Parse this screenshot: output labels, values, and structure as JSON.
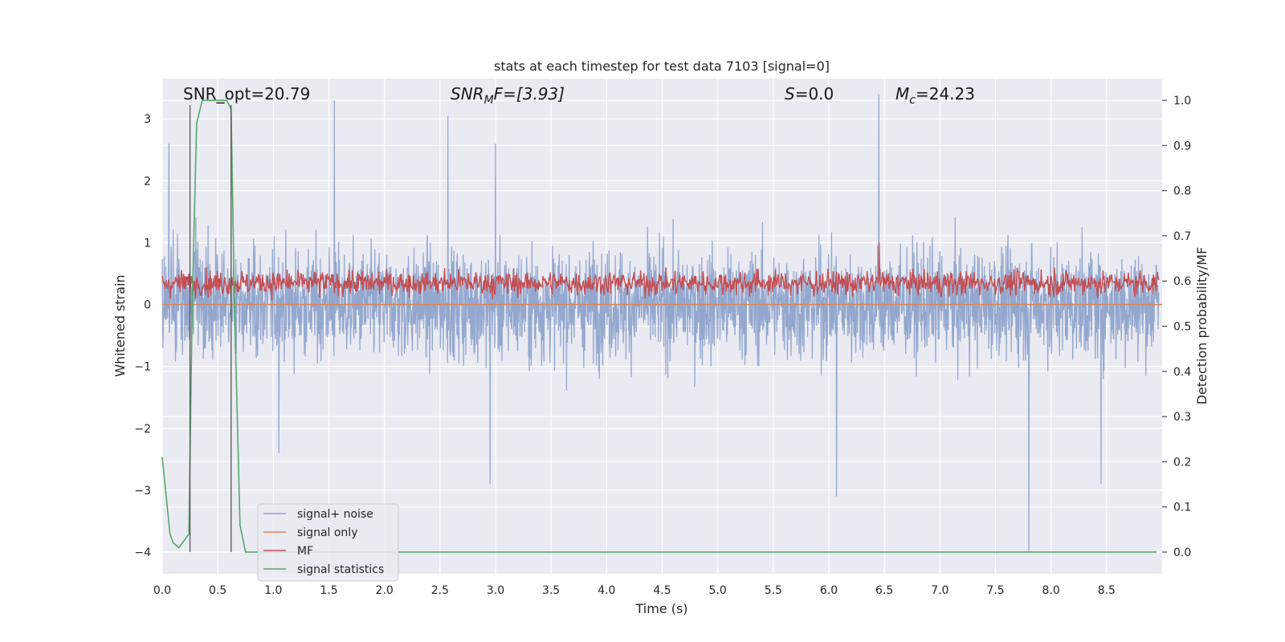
{
  "chart_data": {
    "type": "line",
    "title": "stats at each timestep for test data 7103 [signal=0]",
    "xlabel": "Time (s)",
    "ylabel": "Whitened strain",
    "y2label": "Detection probability/MF",
    "xlim": [
      0.0,
      9.0
    ],
    "ylim": [
      -4.35,
      3.65
    ],
    "y2lim": [
      -0.048,
      1.048
    ],
    "xticks": [
      "0.0",
      "0.5",
      "1.0",
      "1.5",
      "2.0",
      "2.5",
      "3.0",
      "3.5",
      "4.0",
      "4.5",
      "5.0",
      "5.5",
      "6.0",
      "6.5",
      "7.0",
      "7.5",
      "8.0",
      "8.5"
    ],
    "yticks": [
      "3",
      "2",
      "1",
      "0",
      "−1",
      "−2",
      "−3",
      "−4"
    ],
    "y2ticks": [
      "1.0",
      "0.9",
      "0.8",
      "0.7",
      "0.6",
      "0.5",
      "0.4",
      "0.3",
      "0.2",
      "0.1",
      "0.0"
    ],
    "grid": true,
    "legend_position": "lower-left",
    "annotations": {
      "snr_opt": "SNR_opt=20.79",
      "snr_mf": "SNR",
      "snr_mf_sub": "M",
      "snr_mf_rest": "F=[3.93]",
      "s_label": "S",
      "s_value": "=0.0",
      "mc_label": "M",
      "mc_sub": "c",
      "mc_value": "=24.23"
    },
    "series": [
      {
        "name": "signal+ noise",
        "color": "#8fa4cc",
        "description_axis": "left",
        "noise_envelope": {
          "mean": 0.0,
          "typical_max": 1.9,
          "peak_max": 3.3,
          "typical_min": -1.9,
          "peak_min": -4.0
        },
        "spikes": [
          [
            0.06,
            2.6
          ],
          [
            1.55,
            3.3
          ],
          [
            2.57,
            3.05
          ],
          [
            3.0,
            2.6
          ],
          [
            6.45,
            3.4
          ],
          [
            1.05,
            -2.4
          ],
          [
            2.95,
            -2.9
          ],
          [
            6.07,
            -3.1
          ],
          [
            7.8,
            -4.0
          ],
          [
            8.45,
            -2.9
          ]
        ]
      },
      {
        "name": "signal only",
        "color": "#dd8452",
        "description_axis": "left",
        "x": [
          0.0,
          9.0
        ],
        "y": [
          0.0,
          0.0
        ]
      },
      {
        "name": "MF",
        "color": "#c44e52",
        "description_axis": "left",
        "band": {
          "mean": 0.35,
          "min": 0.0,
          "typical_max": 0.6,
          "peak_max": 1.0
        }
      },
      {
        "name": "signal statistics",
        "color": "#55a868",
        "description_axis": "right",
        "x": [
          0.0,
          0.07,
          0.1,
          0.15,
          0.24,
          0.27,
          0.31,
          0.36,
          0.42,
          0.5,
          0.58,
          0.62,
          0.65,
          0.7,
          0.75,
          1.0,
          2.0,
          4.0,
          6.0,
          8.0,
          8.95
        ],
        "y": [
          0.21,
          0.04,
          0.02,
          0.01,
          0.04,
          0.55,
          0.95,
          1.0,
          1.0,
          1.0,
          1.0,
          0.98,
          0.55,
          0.06,
          0.0,
          0.0,
          0.0,
          0.0,
          0.0,
          0.0,
          0.0
        ]
      }
    ],
    "vertical_markers": [
      0.25,
      0.62
    ],
    "marker_color": "#555555"
  }
}
